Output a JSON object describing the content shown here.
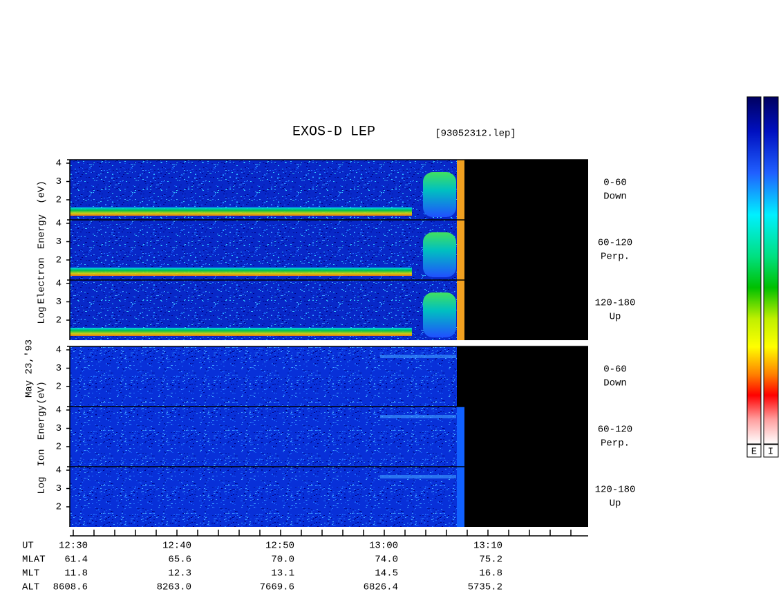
{
  "header": {
    "title": "EXOS-D LEP",
    "file": "[93052312.lep]",
    "date": "May 23,'93"
  },
  "electron": {
    "axis_label": [
      "Log",
      "Electron",
      "Energy",
      "(eV)"
    ],
    "panels": [
      {
        "yticks": [
          "4",
          "3",
          "2"
        ],
        "pitch": "0-60",
        "direction": "Down"
      },
      {
        "yticks": [
          "4",
          "3",
          "2"
        ],
        "pitch": "60-120",
        "direction": "Perp."
      },
      {
        "yticks": [
          "4",
          "3",
          "2"
        ],
        "pitch": "120-180",
        "direction": "Up"
      }
    ]
  },
  "ion": {
    "axis_label": [
      "Log",
      "Ion",
      "Energy",
      "(eV)"
    ],
    "panels": [
      {
        "yticks": [
          "4",
          "3",
          "2"
        ],
        "pitch": "0-60",
        "direction": "Down"
      },
      {
        "yticks": [
          "4",
          "3",
          "2"
        ],
        "pitch": "60-120",
        "direction": "Perp."
      },
      {
        "yticks": [
          "4",
          "3",
          "2"
        ],
        "pitch": "120-180",
        "direction": "Up"
      }
    ]
  },
  "orbit": {
    "rows": [
      {
        "label": "UT",
        "values": [
          "12:30",
          "12:40",
          "12:50",
          "13:00",
          "13:10"
        ]
      },
      {
        "label": "MLAT",
        "values": [
          "61.4",
          "65.6",
          "70.0",
          "74.0",
          "75.2"
        ]
      },
      {
        "label": "MLT",
        "values": [
          "11.8",
          "12.3",
          "13.1",
          "14.5",
          "16.8"
        ]
      },
      {
        "label": "ALT",
        "values": [
          "8608.6",
          "8263.0",
          "7669.6",
          "6826.4",
          "5735.2"
        ]
      }
    ]
  },
  "colorbars": [
    "E",
    "I"
  ]
}
